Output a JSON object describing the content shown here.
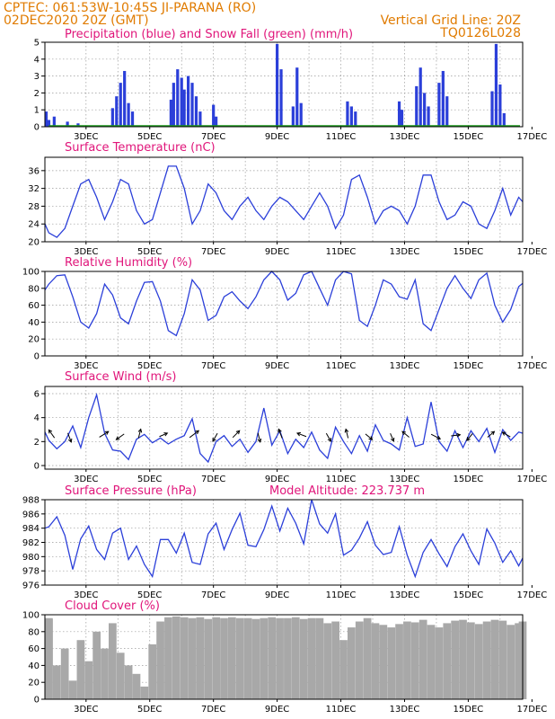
{
  "header": {
    "line1": "CPTEC:   061:53W-10:45S   JI-PARANA (RO)",
    "line2": "02DEC2020 20Z (GMT)",
    "grid_note": "Vertical Grid Line: 20Z",
    "run_id": "TQ0126L028"
  },
  "colors": {
    "header": "#e07b00",
    "title": "#e0157a",
    "series": "#2b3fd9",
    "snow": "#1a9a1a",
    "cloud": "#a8a8a8",
    "wind_arrow": "#000000"
  },
  "x_axis": {
    "tick_labels": [
      "3DEC",
      "5DEC",
      "7DEC",
      "9DEC",
      "11DEC",
      "13DEC",
      "15DEC",
      "17DEC"
    ],
    "start_hour": -3,
    "end_hour": 357,
    "label_hours": [
      28,
      76,
      124,
      172,
      220,
      268,
      316,
      364
    ],
    "grid_hours": [
      28,
      52,
      76,
      100,
      124,
      148,
      172,
      196,
      220,
      244,
      268,
      292,
      316,
      340
    ]
  },
  "chart_data": [
    {
      "type": "bar",
      "title": "Precipitation (blue) and Snow Fall (green) (mm/h)",
      "ylim": [
        0,
        5
      ],
      "yticks": [
        0,
        1,
        2,
        3,
        4,
        5
      ],
      "series": [
        {
          "name": "Precipitation",
          "x": [
            -2,
            0,
            4,
            14,
            22,
            48,
            51,
            54,
            57,
            60,
            63,
            92,
            94,
            97,
            100,
            102,
            105,
            108,
            111,
            114,
            124,
            126,
            172,
            175,
            184,
            187,
            190,
            225,
            228,
            231,
            264,
            266,
            277,
            280,
            283,
            286,
            294,
            297,
            300,
            334,
            337,
            340,
            343
          ],
          "values": [
            0.9,
            0.4,
            0.6,
            0.3,
            0.2,
            1.1,
            1.8,
            2.6,
            3.3,
            1.4,
            0.9,
            1.6,
            2.6,
            3.4,
            2.9,
            2.2,
            3.0,
            2.6,
            1.8,
            0.9,
            1.3,
            0.6,
            4.9,
            3.4,
            1.2,
            3.5,
            1.4,
            1.5,
            1.2,
            0.9,
            1.5,
            1.0,
            2.4,
            3.5,
            2.0,
            1.2,
            2.6,
            3.3,
            1.8,
            2.1,
            4.9,
            2.5,
            0.8
          ]
        },
        {
          "name": "Snow Fall",
          "x": [
            0,
            355
          ],
          "values": [
            0,
            0
          ]
        }
      ]
    },
    {
      "type": "line",
      "title": "Surface Temperature (nC)",
      "ylim": [
        20,
        39
      ],
      "yticks": [
        20,
        24,
        28,
        32,
        36
      ],
      "x": [
        -3,
        0,
        6,
        12,
        18,
        24,
        30,
        36,
        42,
        48,
        54,
        60,
        66,
        72,
        78,
        84,
        90,
        96,
        102,
        108,
        114,
        120,
        126,
        132,
        138,
        144,
        150,
        156,
        162,
        168,
        174,
        180,
        186,
        192,
        198,
        204,
        210,
        216,
        222,
        228,
        234,
        240,
        246,
        252,
        258,
        264,
        270,
        276,
        282,
        288,
        294,
        300,
        306,
        312,
        318,
        324,
        330,
        336,
        342,
        348,
        354,
        357
      ],
      "values": [
        24,
        22,
        21,
        23,
        28,
        33,
        34,
        30,
        25,
        29,
        34,
        33,
        27,
        24,
        25,
        31,
        37,
        37,
        32,
        24,
        27,
        33,
        31,
        27,
        25,
        28,
        30,
        27,
        25,
        28,
        30,
        29,
        27,
        25,
        28,
        31,
        28,
        23,
        26,
        34,
        35,
        30,
        24,
        27,
        28,
        27,
        24,
        28,
        35,
        35,
        29,
        25,
        26,
        29,
        28,
        24,
        23,
        27,
        32,
        26,
        30,
        29
      ]
    },
    {
      "type": "line",
      "title": "Relative Humidity (%)",
      "ylim": [
        0,
        100
      ],
      "yticks": [
        0,
        20,
        40,
        60,
        80,
        100
      ],
      "x": [
        -3,
        0,
        6,
        12,
        18,
        24,
        30,
        36,
        42,
        48,
        54,
        60,
        66,
        72,
        78,
        84,
        90,
        96,
        102,
        108,
        114,
        120,
        126,
        132,
        138,
        144,
        150,
        156,
        162,
        168,
        174,
        180,
        186,
        192,
        198,
        204,
        210,
        216,
        222,
        228,
        234,
        240,
        246,
        252,
        258,
        264,
        270,
        276,
        282,
        288,
        294,
        300,
        306,
        312,
        318,
        324,
        330,
        336,
        342,
        348,
        354,
        357
      ],
      "values": [
        78,
        85,
        95,
        96,
        70,
        40,
        33,
        50,
        85,
        72,
        45,
        38,
        65,
        87,
        88,
        65,
        30,
        24,
        50,
        90,
        78,
        42,
        48,
        70,
        76,
        65,
        56,
        70,
        90,
        100,
        90,
        66,
        74,
        96,
        100,
        80,
        60,
        90,
        100,
        97,
        42,
        35,
        60,
        90,
        85,
        70,
        67,
        90,
        38,
        30,
        55,
        80,
        95,
        80,
        68,
        90,
        98,
        60,
        40,
        55,
        82,
        86
      ]
    },
    {
      "type": "line",
      "title": "Surface Wind (m/s)",
      "ylim": [
        -0.3,
        6.6
      ],
      "yticks": [
        0,
        2,
        4,
        6
      ],
      "x": [
        -3,
        0,
        6,
        12,
        18,
        24,
        30,
        36,
        42,
        48,
        54,
        60,
        66,
        72,
        78,
        84,
        90,
        96,
        102,
        108,
        114,
        120,
        126,
        132,
        138,
        144,
        150,
        156,
        162,
        168,
        174,
        180,
        186,
        192,
        198,
        204,
        210,
        216,
        222,
        228,
        234,
        240,
        246,
        252,
        258,
        264,
        270,
        276,
        282,
        288,
        294,
        300,
        306,
        312,
        318,
        324,
        330,
        336,
        342,
        348,
        354,
        357
      ],
      "values": [
        2.8,
        2.1,
        1.4,
        2.0,
        3.3,
        1.5,
        4.0,
        5.9,
        2.7,
        1.3,
        1.2,
        0.5,
        2.2,
        2.6,
        1.9,
        2.3,
        1.8,
        2.2,
        2.5,
        3.9,
        1.0,
        0.3,
        2.0,
        2.5,
        1.6,
        2.2,
        1.1,
        2.0,
        4.8,
        1.7,
        2.9,
        1.0,
        2.2,
        1.5,
        2.8,
        1.3,
        0.6,
        3.2,
        2.0,
        1.0,
        2.5,
        1.2,
        3.4,
        2.1,
        1.8,
        1.3,
        4.0,
        1.6,
        1.8,
        5.3,
        2.0,
        1.2,
        2.9,
        1.5,
        2.9,
        2.0,
        3.1,
        1.1,
        3.0,
        2.1,
        2.8,
        2.7
      ],
      "arrows": [
        {
          "x": 3,
          "u": -0.5,
          "v": 0.7
        },
        {
          "x": 15,
          "u": 0.3,
          "v": -0.8
        },
        {
          "x": 40,
          "u": 0.8,
          "v": 0.5
        },
        {
          "x": 55,
          "u": -0.7,
          "v": -0.5
        },
        {
          "x": 68,
          "u": 0.2,
          "v": 0.8
        },
        {
          "x": 85,
          "u": 0.7,
          "v": 0.3
        },
        {
          "x": 108,
          "u": 0.8,
          "v": 0.6
        },
        {
          "x": 126,
          "u": -0.4,
          "v": -0.7
        },
        {
          "x": 140,
          "u": 0.6,
          "v": 0.6
        },
        {
          "x": 158,
          "u": 0.2,
          "v": -0.8
        },
        {
          "x": 175,
          "u": -0.3,
          "v": 0.8
        },
        {
          "x": 192,
          "u": -0.8,
          "v": 0.3
        },
        {
          "x": 210,
          "u": 0.4,
          "v": -0.7
        },
        {
          "x": 225,
          "u": -0.2,
          "v": 0.8
        },
        {
          "x": 240,
          "u": 0.6,
          "v": -0.5
        },
        {
          "x": 258,
          "u": 0.3,
          "v": -0.7
        },
        {
          "x": 270,
          "u": -0.6,
          "v": 0.5
        },
        {
          "x": 290,
          "u": 0.8,
          "v": -0.4
        },
        {
          "x": 305,
          "u": 0.8,
          "v": 0.1
        },
        {
          "x": 318,
          "u": -0.5,
          "v": -0.6
        },
        {
          "x": 332,
          "u": 0.6,
          "v": 0.5
        },
        {
          "x": 346,
          "u": -0.7,
          "v": 0.4
        }
      ]
    },
    {
      "type": "line",
      "title": "Surface Pressure (hPa)",
      "subtitle": "Model Altitude: 223.737  m",
      "ylim": [
        976,
        988
      ],
      "yticks": [
        976,
        978,
        980,
        982,
        984,
        986,
        988
      ],
      "x": [
        -3,
        0,
        6,
        12,
        18,
        24,
        30,
        36,
        42,
        48,
        54,
        60,
        66,
        72,
        78,
        84,
        90,
        96,
        102,
        108,
        114,
        120,
        126,
        132,
        138,
        144,
        150,
        156,
        162,
        168,
        174,
        180,
        186,
        192,
        198,
        204,
        210,
        216,
        222,
        228,
        234,
        240,
        246,
        252,
        258,
        264,
        270,
        276,
        282,
        288,
        294,
        300,
        306,
        312,
        318,
        324,
        330,
        336,
        342,
        348,
        354,
        357
      ],
      "values": [
        984,
        984.2,
        985.6,
        983,
        978.2,
        982.5,
        984.3,
        981,
        979.6,
        983.3,
        984,
        979.6,
        981.5,
        978.9,
        977.2,
        982.4,
        982.4,
        980.5,
        983.3,
        979.2,
        978.9,
        983.2,
        984.7,
        981,
        983.8,
        986.1,
        981.6,
        981.4,
        983.8,
        987.1,
        983.6,
        986.8,
        984.7,
        981.8,
        988,
        984.6,
        983.3,
        986,
        980.2,
        980.9,
        982.6,
        984.9,
        981.6,
        980.3,
        980.6,
        984.2,
        980.2,
        977.2,
        980.6,
        982.4,
        980.4,
        978.6,
        981.4,
        983.2,
        980.8,
        978.9,
        983.9,
        981.9,
        979.2,
        980.8,
        978.7,
        979.8
      ]
    },
    {
      "type": "bar",
      "title": "Cloud Cover (%)",
      "ylim": [
        0,
        100
      ],
      "yticks": [
        0,
        20,
        40,
        60,
        80,
        100
      ],
      "x": [
        -3,
        0,
        6,
        12,
        18,
        24,
        30,
        36,
        42,
        48,
        54,
        60,
        66,
        72,
        78,
        84,
        90,
        96,
        102,
        108,
        114,
        120,
        126,
        132,
        138,
        144,
        150,
        156,
        162,
        168,
        174,
        180,
        186,
        192,
        198,
        204,
        210,
        216,
        222,
        228,
        234,
        240,
        246,
        252,
        258,
        264,
        270,
        276,
        282,
        288,
        294,
        300,
        306,
        312,
        318,
        324,
        330,
        336,
        342,
        348,
        354,
        357
      ],
      "values": [
        96,
        95,
        40,
        60,
        22,
        70,
        45,
        80,
        60,
        90,
        55,
        40,
        30,
        15,
        65,
        92,
        97,
        98,
        97,
        96,
        97,
        95,
        97,
        96,
        97,
        96,
        96,
        95,
        96,
        97,
        96,
        96,
        97,
        95,
        96,
        96,
        90,
        92,
        70,
        85,
        92,
        96,
        90,
        88,
        85,
        89,
        92,
        91,
        94,
        88,
        85,
        90,
        93,
        94,
        91,
        89,
        92,
        94,
        93,
        88,
        90,
        92
      ]
    }
  ]
}
